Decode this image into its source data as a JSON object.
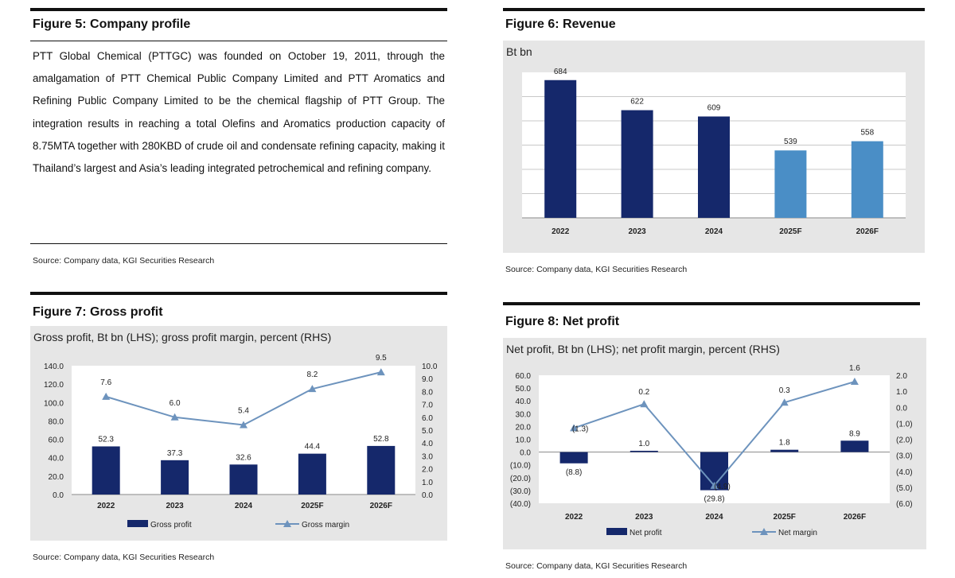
{
  "fig5": {
    "title": "Figure 5: Company profile",
    "text": "PTT Global Chemical (PTTGC) was founded on October 19, 2011, through the amalgamation of PTT Chemical Public Company Limited and PTT Aromatics and Refining Public Company Limited to be the chemical flagship of PTT Group. The integration results in reaching a total Olefins and Aromatics production capacity of 8.75MTA together with 280KBD of crude oil and condensate refining capacity, making it Thailand’s largest and Asia’s leading integrated petrochemical and refining company.",
    "source": "Source: Company data, KGI Securities Research"
  },
  "fig6": {
    "title": "Figure 6: Revenue",
    "source": "Source: Company data, KGI Securities Research"
  },
  "fig7": {
    "title": "Figure 7: Gross profit",
    "source": "Source: Company data, KGI Securities Research"
  },
  "fig8": {
    "title": "Figure 8: Net profit",
    "source": "Source: Company data, KGI Securities Research"
  },
  "colors": {
    "navy": "#15286b",
    "lightblue": "#4a8ec6",
    "line": "#6d93bd",
    "chart_bg": "#e6e6e6",
    "plot_bg": "#ffffff"
  },
  "chart_data": [
    {
      "id": "revenue",
      "type": "bar",
      "title": "Bt bn",
      "categories": [
        "2022",
        "2023",
        "2024",
        "2025F",
        "2026F"
      ],
      "values": [
        684,
        622,
        609,
        539,
        558
      ],
      "labels": [
        "684",
        "622",
        "609",
        "539",
        "558"
      ],
      "forecast_from_index": 3,
      "ylim": [
        400,
        700
      ],
      "grid": true
    },
    {
      "id": "gross_profit",
      "type": "bar",
      "title": "Gross profit, Bt bn (LHS); gross profit margin, percent (RHS)",
      "categories": [
        "2022",
        "2023",
        "2024",
        "2025F",
        "2026F"
      ],
      "series": [
        {
          "name": "Gross profit",
          "type": "bar",
          "axis": "left",
          "values": [
            52.3,
            37.3,
            32.6,
            44.4,
            52.8
          ],
          "labels": [
            "52.3",
            "37.3",
            "32.6",
            "44.4",
            "52.8"
          ]
        },
        {
          "name": "Gross margin",
          "type": "line",
          "axis": "right",
          "values": [
            7.6,
            6.0,
            5.4,
            8.2,
            9.5
          ],
          "labels": [
            "7.6",
            "6.0",
            "5.4",
            "8.2",
            "9.5"
          ]
        }
      ],
      "ylim_left": [
        0,
        140
      ],
      "yticks_left": [
        "140.0",
        "120.0",
        "100.0",
        "80.0",
        "60.0",
        "40.0",
        "20.0",
        "0.0"
      ],
      "ylim_right": [
        0,
        10
      ],
      "yticks_right": [
        "10.0",
        "9.0",
        "8.0",
        "7.0",
        "6.0",
        "5.0",
        "4.0",
        "3.0",
        "2.0",
        "1.0",
        "0.0"
      ],
      "legend": "bottom"
    },
    {
      "id": "net_profit",
      "type": "bar",
      "title": "Net profit, Bt bn (LHS); net profit margin, percent (RHS)",
      "categories": [
        "2022",
        "2023",
        "2024",
        "2025F",
        "2026F"
      ],
      "series": [
        {
          "name": "Net profit",
          "type": "bar",
          "axis": "left",
          "values": [
            -8.8,
            1.0,
            -29.8,
            1.8,
            8.9
          ],
          "labels": [
            "(8.8)",
            "1.0",
            "(29.8)",
            "1.8",
            "8.9"
          ]
        },
        {
          "name": "Net margin",
          "type": "line",
          "axis": "right",
          "values": [
            -1.3,
            0.2,
            -4.9,
            0.3,
            1.6
          ],
          "labels": [
            "(1.3)",
            "0.2",
            "(4.9)",
            "0.3",
            "1.6"
          ]
        }
      ],
      "ylim_left": [
        -40,
        60
      ],
      "yticks_left": [
        "60.0",
        "50.0",
        "40.0",
        "30.0",
        "20.0",
        "10.0",
        "0.0",
        "(10.0)",
        "(20.0)",
        "(30.0)",
        "(40.0)"
      ],
      "ylim_right": [
        -6,
        2
      ],
      "yticks_right": [
        "2.0",
        "1.0",
        "0.0",
        "(1.0)",
        "(2.0)",
        "(3.0)",
        "(4.0)",
        "(5.0)",
        "(6.0)"
      ],
      "legend": "bottom"
    }
  ]
}
